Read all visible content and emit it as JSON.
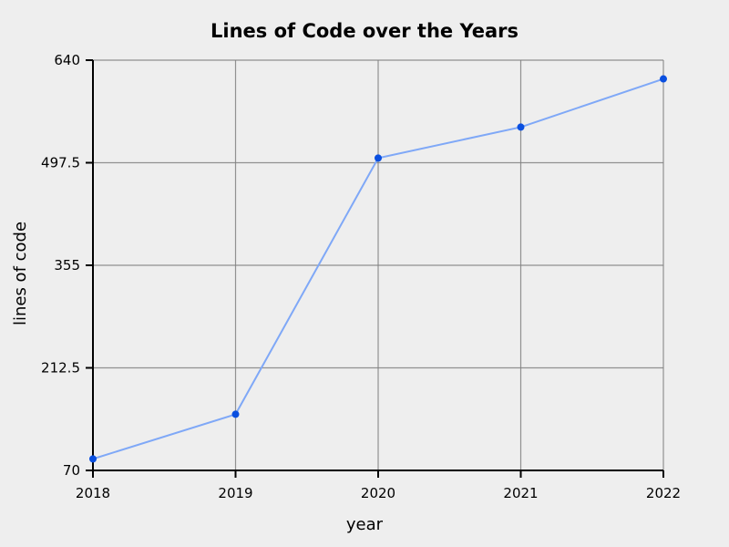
{
  "chart_data": {
    "type": "line",
    "title": "Lines of Code over the Years",
    "xlabel": "year",
    "ylabel": "lines of code",
    "categories": [
      "2018",
      "2019",
      "2020",
      "2021",
      "2022"
    ],
    "series": [
      {
        "values": [
          86,
          148,
          504,
          547,
          614
        ]
      }
    ],
    "ylim": [
      70,
      640
    ],
    "yticks": [
      "70",
      "212.5",
      "355",
      "497.5",
      "640"
    ],
    "grid": true,
    "colors": {
      "background": "#eeeeee",
      "line": "#7fa8f7",
      "point": "#0a4fe0",
      "grid": "#808080",
      "axis": "#000000"
    }
  }
}
